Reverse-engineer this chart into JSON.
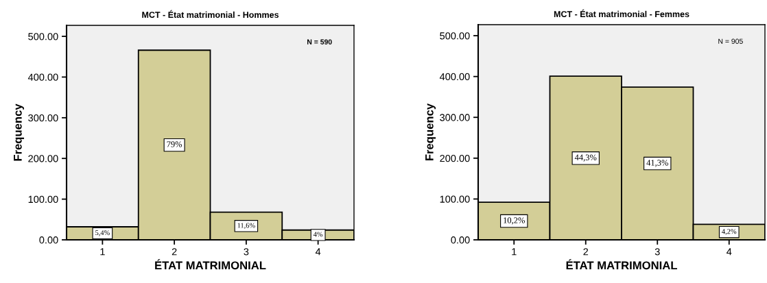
{
  "chart_data": [
    {
      "type": "bar",
      "title": "MCT - État matrimonial - Hommes",
      "xlabel": "ÉTAT MATRIMONIAL",
      "ylabel": "Frequency",
      "categories": [
        "1",
        "2",
        "3",
        "4"
      ],
      "values": [
        32,
        466,
        68,
        24
      ],
      "color": "#d3ce97",
      "ylim": [
        0,
        527
      ],
      "yticks": [
        {
          "value": 0,
          "label": "0.00"
        },
        {
          "value": 100,
          "label": "100.00"
        },
        {
          "value": 200,
          "label": "200.00"
        },
        {
          "value": 300,
          "label": "300.00"
        },
        {
          "value": 400,
          "label": "400.00"
        },
        {
          "value": 500,
          "label": "500.00"
        }
      ],
      "annotations": [
        "N = 590",
        {
          "text": "5,4%",
          "x": "1",
          "y": 16
        },
        {
          "text": "79%",
          "x": "2",
          "y": 233
        },
        {
          "text": "11,6%",
          "x": "3",
          "y": 34
        },
        {
          "text": "4%",
          "x": "4",
          "y": 12
        }
      ],
      "grid": false,
      "legend": false
    },
    {
      "type": "bar",
      "title": "MCT - État matrimonial - Femmes",
      "xlabel": "ÉTAT MATRIMONIAL",
      "ylabel": "Frequency",
      "categories": [
        "1",
        "2",
        "3",
        "4"
      ],
      "values": [
        92,
        401,
        374,
        38
      ],
      "color": "#d3ce97",
      "ylim": [
        0,
        527
      ],
      "yticks": [
        {
          "value": 0,
          "label": "0.00"
        },
        {
          "value": 100,
          "label": "100.00"
        },
        {
          "value": 200,
          "label": "200.00"
        },
        {
          "value": 300,
          "label": "300.00"
        },
        {
          "value": 400,
          "label": "400.00"
        },
        {
          "value": 500,
          "label": "500.00"
        }
      ],
      "annotations": [
        "N = 905",
        {
          "text": "10,2%",
          "x": "1",
          "y": 46
        },
        {
          "text": "44,3%",
          "x": "2",
          "y": 200
        },
        {
          "text": "41,3%",
          "x": "3",
          "y": 187
        },
        {
          "text": "4,2%",
          "x": "4",
          "y": 19
        }
      ],
      "grid": false,
      "legend": false
    }
  ]
}
